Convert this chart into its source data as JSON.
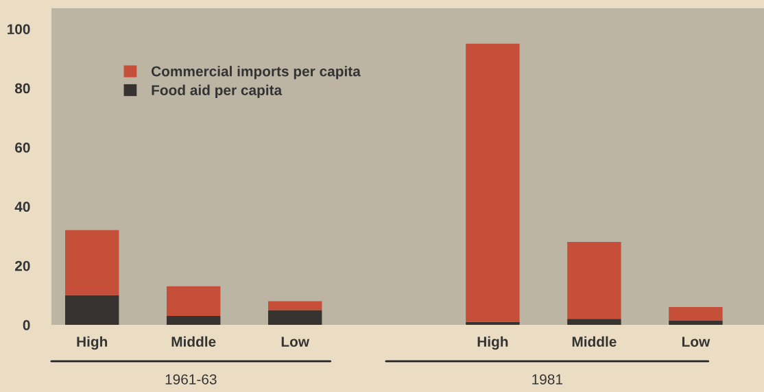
{
  "chart_data": [
    {
      "type": "bar",
      "stacked": true,
      "xlabel": "1961-63",
      "categories": [
        "High",
        "Middle",
        "Low"
      ],
      "ylim": [
        0,
        107
      ],
      "yticks": [
        0,
        20,
        40,
        60,
        80,
        100
      ],
      "legend": "top",
      "grid": false,
      "series": [
        {
          "name": "Food aid per capita",
          "color": "#363331",
          "values": [
            10,
            3,
            5
          ]
        },
        {
          "name": "Commercial imports per capita",
          "color": "#c64f3a",
          "values": [
            22,
            10,
            3
          ]
        }
      ]
    },
    {
      "type": "bar",
      "stacked": true,
      "xlabel": "1981",
      "categories": [
        "High",
        "Middle",
        "Low"
      ],
      "ylim": [
        0,
        107
      ],
      "yticks": [
        0,
        20,
        40,
        60,
        80,
        100
      ],
      "tick_labels": "x",
      "grid": false,
      "series": [
        {
          "color": "#363331",
          "values": [
            1,
            2,
            1.5
          ]
        },
        {
          "color": "#c64f3a",
          "values": [
            94,
            26,
            4.5
          ]
        }
      ]
    }
  ]
}
